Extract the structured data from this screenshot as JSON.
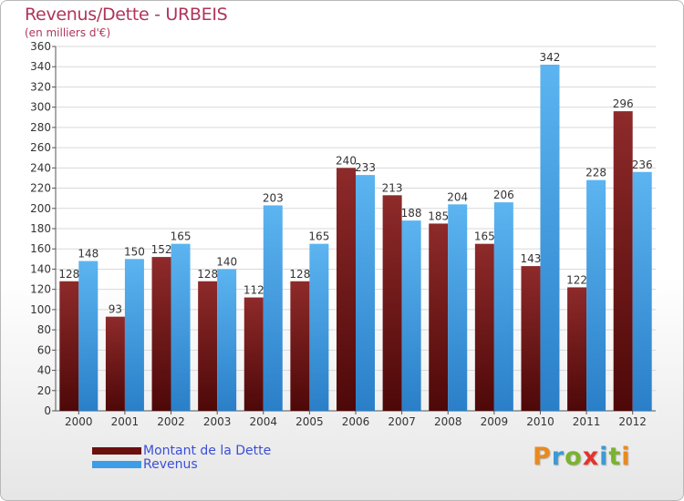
{
  "title": "Revenus/Dette - URBEIS",
  "subtitle": "(en milliers d'€)",
  "colors": {
    "debt": "#7b1a1a",
    "revenue": "#3d9de6",
    "title": "#b0345a",
    "legend_text": "#3a4fd8"
  },
  "legend": {
    "debt_label": "Montant de la Dette",
    "revenue_label": "Revenus"
  },
  "logo": {
    "letters": [
      "P",
      "r",
      "o",
      "x",
      "i",
      "t",
      "i"
    ]
  },
  "chart_data": {
    "type": "bar",
    "title": "Revenus/Dette - URBEIS",
    "subtitle": "(en milliers d'€)",
    "categories": [
      "2000",
      "2001",
      "2002",
      "2003",
      "2004",
      "2005",
      "2006",
      "2007",
      "2008",
      "2009",
      "2010",
      "2011",
      "2012"
    ],
    "series": [
      {
        "name": "Montant de la Dette",
        "values": [
          128,
          93,
          152,
          128,
          112,
          128,
          240,
          213,
          185,
          165,
          143,
          122,
          296
        ]
      },
      {
        "name": "Revenus",
        "values": [
          148,
          150,
          165,
          140,
          203,
          165,
          233,
          188,
          204,
          206,
          342,
          228,
          236
        ]
      }
    ],
    "ylim": [
      0,
      360
    ],
    "ytick_step": 20,
    "grid": true,
    "legend_position": "bottom-left"
  }
}
